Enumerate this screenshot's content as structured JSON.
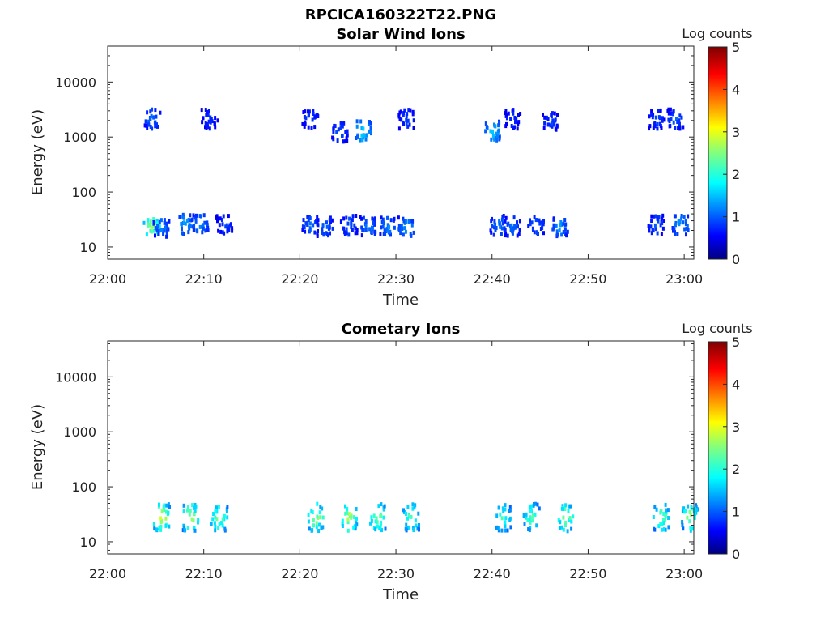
{
  "figure": {
    "title": "RPCICA160322T22.PNG"
  },
  "chart_data": [
    {
      "type": "heatmap",
      "title": "Solar Wind Ions",
      "xlabel": "Time",
      "ylabel": "Energy (eV)",
      "x_ticks": [
        "22:00",
        "22:10",
        "22:20",
        "22:30",
        "22:40",
        "22:50",
        "23:00"
      ],
      "x_range": [
        "22:00",
        "23:01"
      ],
      "y_scale": "log",
      "y_ticks": [
        "10",
        "100",
        "1000",
        "10000"
      ],
      "y_range": [
        6,
        45000
      ],
      "colorbar": {
        "label": "Log counts",
        "range": [
          0,
          5
        ],
        "ticks": [
          "0",
          "1",
          "2",
          "3",
          "4",
          "5"
        ],
        "colormap": "jet"
      },
      "clusters": [
        {
          "t": "22:04.5",
          "e": 25,
          "count": 3
        },
        {
          "t": "22:05.5",
          "e": 25,
          "count": 1.4
        },
        {
          "t": "22:08",
          "e": 28,
          "count": 1.6
        },
        {
          "t": "22:09.5",
          "e": 28,
          "count": 1.5
        },
        {
          "t": "22:12",
          "e": 27,
          "count": 1.1
        },
        {
          "t": "22:21",
          "e": 27,
          "count": 1.3
        },
        {
          "t": "22:22.5",
          "e": 25,
          "count": 1.3
        },
        {
          "t": "22:25",
          "e": 27,
          "count": 1.2
        },
        {
          "t": "22:27",
          "e": 25,
          "count": 1.4
        },
        {
          "t": "22:29",
          "e": 25,
          "count": 1.5
        },
        {
          "t": "22:31",
          "e": 25,
          "count": 1.6
        },
        {
          "t": "22:40.5",
          "e": 27,
          "count": 1.4
        },
        {
          "t": "22:42",
          "e": 25,
          "count": 1.3
        },
        {
          "t": "22:44.5",
          "e": 27,
          "count": 1.3
        },
        {
          "t": "22:47",
          "e": 25,
          "count": 1.5
        },
        {
          "t": "22:57",
          "e": 27,
          "count": 1.2
        },
        {
          "t": "22:59.5",
          "e": 27,
          "count": 1.6
        },
        {
          "t": "22:04.5",
          "e": 2300,
          "count": 1.3
        },
        {
          "t": "22:10.5",
          "e": 2300,
          "count": 1
        },
        {
          "t": "22:21",
          "e": 2300,
          "count": 1.1
        },
        {
          "t": "22:24",
          "e": 1300,
          "count": 1.2
        },
        {
          "t": "22:26.5",
          "e": 1400,
          "count": 2
        },
        {
          "t": "22:31",
          "e": 2300,
          "count": 1.1
        },
        {
          "t": "22:40",
          "e": 1400,
          "count": 1.8
        },
        {
          "t": "22:42",
          "e": 2300,
          "count": 1
        },
        {
          "t": "22:46",
          "e": 2000,
          "count": 1.1
        },
        {
          "t": "22:57",
          "e": 2300,
          "count": 1.1
        },
        {
          "t": "22:59",
          "e": 2300,
          "count": 1.2
        }
      ]
    },
    {
      "type": "heatmap",
      "title": "Cometary Ions",
      "xlabel": "Time",
      "ylabel": "Energy (eV)",
      "x_ticks": [
        "22:00",
        "22:10",
        "22:20",
        "22:30",
        "22:40",
        "22:50",
        "23:00"
      ],
      "x_range": [
        "22:00",
        "23:01"
      ],
      "y_scale": "log",
      "y_ticks": [
        "10",
        "100",
        "1000",
        "10000"
      ],
      "y_range": [
        6,
        45000
      ],
      "colorbar": {
        "label": "Log counts",
        "range": [
          0,
          5
        ],
        "ticks": [
          "0",
          "1",
          "2",
          "3",
          "4",
          "5"
        ],
        "colormap": "jet"
      },
      "clusters": [
        {
          "t": "22:05.5",
          "e": 30,
          "count": 3.3
        },
        {
          "t": "22:08.5",
          "e": 30,
          "count": 3.1
        },
        {
          "t": "22:11.5",
          "e": 30,
          "count": 2.8
        },
        {
          "t": "22:21.5",
          "e": 30,
          "count": 3
        },
        {
          "t": "22:25",
          "e": 30,
          "count": 3.1
        },
        {
          "t": "22:28",
          "e": 30,
          "count": 2.9
        },
        {
          "t": "22:31.5",
          "e": 30,
          "count": 2.7
        },
        {
          "t": "22:41",
          "e": 30,
          "count": 2.5
        },
        {
          "t": "22:44",
          "e": 30,
          "count": 2.6
        },
        {
          "t": "22:47.5",
          "e": 30,
          "count": 2.9
        },
        {
          "t": "22:57.5",
          "e": 30,
          "count": 2.8
        },
        {
          "t": "23:00.5",
          "e": 30,
          "count": 2.9
        }
      ]
    }
  ]
}
